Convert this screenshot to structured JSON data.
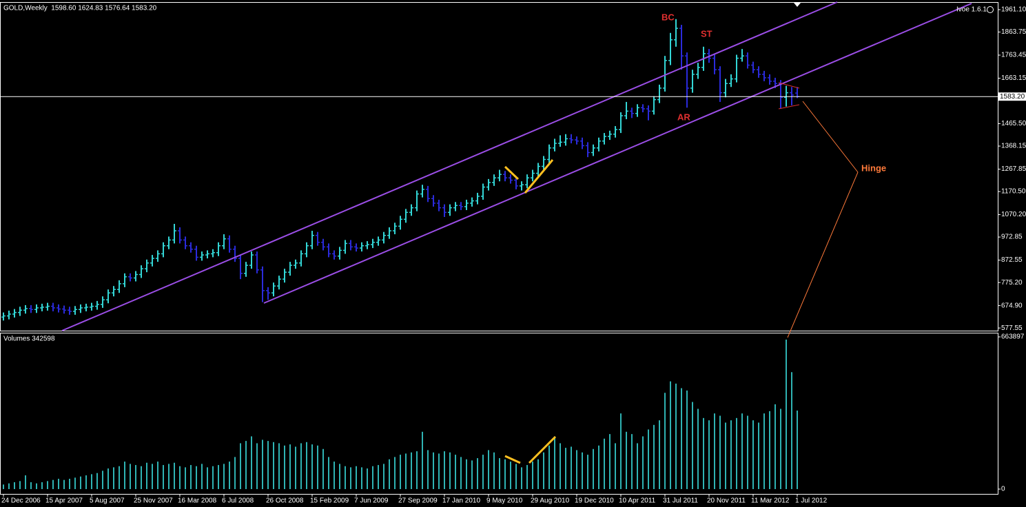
{
  "chart_data": [
    {
      "type": "ohlc",
      "title": "GOLD,Weekly  1598.60 1624.83 1576.64 1583.20",
      "indicator": "Ivoe 1.6.1",
      "up_color": "#33d6d6",
      "down_color": "#2b2bdc",
      "open": [
        625,
        630,
        638,
        645,
        655,
        662,
        658,
        665,
        668,
        672,
        665,
        660,
        655,
        650,
        658,
        665,
        668,
        672,
        680,
        700,
        730,
        745,
        770,
        800,
        795,
        810,
        835,
        860,
        880,
        900,
        935,
        960,
        1000,
        960,
        935,
        920,
        885,
        895,
        900,
        905,
        935,
        965,
        920,
        880,
        815,
        850,
        895,
        830,
        740,
        730,
        760,
        790,
        820,
        850,
        860,
        900,
        935,
        980,
        950,
        930,
        900,
        890,
        915,
        945,
        930,
        925,
        935,
        940,
        950,
        960,
        980,
        1000,
        1020,
        1050,
        1080,
        1100,
        1160,
        1180,
        1140,
        1120,
        1100,
        1080,
        1100,
        1110,
        1105,
        1120,
        1130,
        1150,
        1190,
        1210,
        1230,
        1245,
        1230,
        1220,
        1195,
        1200,
        1230,
        1250,
        1280,
        1310,
        1360,
        1380,
        1385,
        1400,
        1395,
        1390,
        1370,
        1340,
        1360,
        1390,
        1410,
        1420,
        1440,
        1500,
        1520,
        1510,
        1535,
        1530,
        1520,
        1570,
        1620,
        1740,
        1830,
        1880,
        1760,
        1620,
        1680,
        1710,
        1770,
        1750,
        1700,
        1600,
        1640,
        1660,
        1750,
        1760,
        1720,
        1700,
        1680,
        1665,
        1650,
        1640,
        1580,
        1600,
        1598.6
      ],
      "high": [
        645,
        653,
        660,
        670,
        677,
        677,
        680,
        683,
        687,
        687,
        680,
        675,
        670,
        673,
        680,
        683,
        687,
        695,
        715,
        745,
        760,
        785,
        815,
        815,
        825,
        850,
        875,
        895,
        915,
        950,
        975,
        1030,
        1015,
        975,
        950,
        935,
        910,
        915,
        920,
        950,
        985,
        980,
        935,
        895,
        865,
        910,
        910,
        845,
        755,
        775,
        805,
        835,
        865,
        875,
        915,
        950,
        1000,
        995,
        965,
        945,
        915,
        930,
        960,
        960,
        945,
        950,
        955,
        965,
        975,
        995,
        1015,
        1035,
        1065,
        1095,
        1115,
        1175,
        1200,
        1195,
        1155,
        1135,
        1115,
        1115,
        1125,
        1125,
        1135,
        1145,
        1165,
        1205,
        1225,
        1245,
        1265,
        1260,
        1245,
        1235,
        1215,
        1245,
        1265,
        1295,
        1325,
        1375,
        1400,
        1415,
        1420,
        1420,
        1410,
        1405,
        1385,
        1375,
        1405,
        1425,
        1435,
        1455,
        1515,
        1560,
        1535,
        1550,
        1550,
        1545,
        1585,
        1635,
        1760,
        1860,
        1920,
        1895,
        1775,
        1700,
        1730,
        1800,
        1790,
        1765,
        1715,
        1660,
        1680,
        1765,
        1790,
        1775,
        1735,
        1715,
        1695,
        1680,
        1665,
        1655,
        1630,
        1625,
        1624.83
      ],
      "low": [
        610,
        615,
        623,
        630,
        640,
        643,
        643,
        650,
        653,
        650,
        645,
        640,
        635,
        635,
        643,
        650,
        653,
        657,
        665,
        685,
        715,
        730,
        755,
        780,
        780,
        795,
        820,
        845,
        865,
        885,
        920,
        945,
        945,
        920,
        905,
        870,
        870,
        880,
        885,
        890,
        920,
        905,
        865,
        790,
        800,
        835,
        815,
        690,
        700,
        715,
        745,
        775,
        805,
        835,
        845,
        885,
        920,
        935,
        915,
        885,
        875,
        875,
        900,
        915,
        910,
        910,
        920,
        925,
        935,
        945,
        965,
        985,
        1005,
        1035,
        1065,
        1085,
        1145,
        1125,
        1105,
        1085,
        1060,
        1065,
        1085,
        1090,
        1090,
        1105,
        1115,
        1135,
        1175,
        1195,
        1215,
        1215,
        1205,
        1180,
        1175,
        1185,
        1215,
        1235,
        1265,
        1295,
        1345,
        1365,
        1370,
        1380,
        1375,
        1355,
        1320,
        1325,
        1345,
        1375,
        1395,
        1405,
        1425,
        1485,
        1490,
        1495,
        1515,
        1480,
        1505,
        1555,
        1605,
        1720,
        1800,
        1700,
        1535,
        1600,
        1660,
        1695,
        1730,
        1680,
        1560,
        1580,
        1625,
        1645,
        1735,
        1705,
        1685,
        1665,
        1650,
        1635,
        1620,
        1530,
        1540,
        1545,
        1576.64
      ],
      "close": [
        630,
        638,
        645,
        655,
        662,
        658,
        665,
        668,
        672,
        665,
        660,
        655,
        650,
        658,
        665,
        668,
        672,
        680,
        700,
        730,
        745,
        770,
        800,
        795,
        810,
        835,
        860,
        880,
        900,
        935,
        960,
        1000,
        960,
        935,
        920,
        885,
        895,
        900,
        905,
        935,
        965,
        920,
        880,
        815,
        850,
        895,
        830,
        740,
        730,
        760,
        790,
        820,
        850,
        860,
        900,
        935,
        980,
        950,
        930,
        900,
        890,
        915,
        945,
        930,
        925,
        935,
        940,
        950,
        960,
        980,
        1000,
        1020,
        1050,
        1080,
        1100,
        1160,
        1180,
        1140,
        1120,
        1100,
        1080,
        1100,
        1110,
        1105,
        1120,
        1130,
        1150,
        1190,
        1210,
        1230,
        1245,
        1230,
        1220,
        1195,
        1200,
        1230,
        1250,
        1280,
        1310,
        1360,
        1380,
        1385,
        1400,
        1395,
        1390,
        1370,
        1340,
        1360,
        1390,
        1410,
        1420,
        1440,
        1500,
        1520,
        1510,
        1535,
        1530,
        1520,
        1570,
        1620,
        1740,
        1830,
        1880,
        1760,
        1620,
        1680,
        1710,
        1770,
        1750,
        1700,
        1600,
        1640,
        1660,
        1750,
        1760,
        1720,
        1700,
        1680,
        1665,
        1650,
        1640,
        1580,
        1600,
        1590,
        1583.2
      ],
      "last_price": {
        "value": 1583.2,
        "label": "1583.20"
      },
      "ylim": [
        566,
        1994
      ],
      "yticks": [
        577.55,
        {
          "value": 674.9,
          "label": "674.90"
        },
        {
          "value": 775.2,
          "label": "775.20"
        },
        872.55,
        972.85,
        {
          "value": 1070.2,
          "label": "1070.20"
        },
        {
          "value": 1170.5,
          "label": "1170.50"
        },
        1267.85,
        1368.15,
        {
          "value": 1465.5,
          "label": "1465.50"
        },
        1663.15,
        1763.45,
        1863.75,
        {
          "value": 1961.1,
          "label": "1961.10"
        }
      ],
      "annotations": [
        "BC",
        "ST",
        "AR",
        "Hinge"
      ]
    },
    {
      "type": "bar",
      "title": "Volumes 342598",
      "color": "#2fb4b4",
      "categories": [
        "24 Dec 2006",
        null,
        null,
        null,
        null,
        null,
        null,
        null,
        "15 Apr 2007",
        null,
        null,
        null,
        null,
        null,
        null,
        null,
        "5 Aug 2007",
        null,
        null,
        null,
        null,
        null,
        null,
        null,
        "25 Nov 2007",
        null,
        null,
        null,
        null,
        null,
        null,
        null,
        "16 Mar 2008",
        null,
        null,
        null,
        null,
        null,
        null,
        null,
        "6 Jul 2008",
        null,
        null,
        null,
        null,
        null,
        null,
        null,
        "26 Oct 2008",
        null,
        null,
        null,
        null,
        null,
        null,
        null,
        "15 Feb 2009",
        null,
        null,
        null,
        null,
        null,
        null,
        null,
        "7 Jun 2009",
        null,
        null,
        null,
        null,
        null,
        null,
        null,
        "27 Sep 2009",
        null,
        null,
        null,
        null,
        null,
        null,
        null,
        "17 Jan 2010",
        null,
        null,
        null,
        null,
        null,
        null,
        null,
        "9 May 2010",
        null,
        null,
        null,
        null,
        null,
        null,
        null,
        "29 Aug 2010",
        null,
        null,
        null,
        null,
        null,
        null,
        null,
        "19 Dec 2010",
        null,
        null,
        null,
        null,
        null,
        null,
        null,
        "10 Apr 2011",
        null,
        null,
        null,
        null,
        null,
        null,
        null,
        "31 Jul 2011",
        null,
        null,
        null,
        null,
        null,
        null,
        null,
        "20 Nov 2011",
        null,
        null,
        null,
        null,
        null,
        null,
        null,
        "11 Mar 2012",
        null,
        null,
        null,
        null,
        null,
        null,
        null,
        "1 Jul 2012"
      ],
      "values": [
        20000,
        25000,
        30000,
        35000,
        60000,
        30000,
        25000,
        30000,
        35000,
        40000,
        45000,
        40000,
        45000,
        50000,
        55000,
        60000,
        65000,
        70000,
        80000,
        90000,
        95000,
        100000,
        120000,
        110000,
        105000,
        100000,
        115000,
        110000,
        120000,
        105000,
        110000,
        115000,
        100000,
        95000,
        105000,
        100000,
        110000,
        95000,
        100000,
        105000,
        110000,
        120000,
        140000,
        200000,
        210000,
        230000,
        200000,
        215000,
        210000,
        205000,
        200000,
        190000,
        195000,
        185000,
        200000,
        205000,
        195000,
        190000,
        175000,
        140000,
        120000,
        110000,
        100000,
        95000,
        100000,
        95000,
        90000,
        100000,
        105000,
        110000,
        130000,
        140000,
        150000,
        155000,
        160000,
        165000,
        250000,
        170000,
        160000,
        155000,
        165000,
        160000,
        150000,
        140000,
        130000,
        125000,
        135000,
        150000,
        170000,
        160000,
        135000,
        130000,
        120000,
        110000,
        95000,
        105000,
        120000,
        130000,
        160000,
        190000,
        230000,
        200000,
        180000,
        185000,
        170000,
        160000,
        150000,
        175000,
        190000,
        220000,
        240000,
        200000,
        330000,
        250000,
        240000,
        200000,
        230000,
        260000,
        280000,
        300000,
        420000,
        470000,
        460000,
        440000,
        430000,
        380000,
        350000,
        310000,
        300000,
        330000,
        320000,
        290000,
        300000,
        310000,
        330000,
        320000,
        300000,
        290000,
        330000,
        340000,
        370000,
        350000,
        652000,
        510000,
        342598
      ],
      "ylim": [
        -21000,
        682000
      ],
      "yticks": [
        663897,
        0
      ]
    }
  ]
}
